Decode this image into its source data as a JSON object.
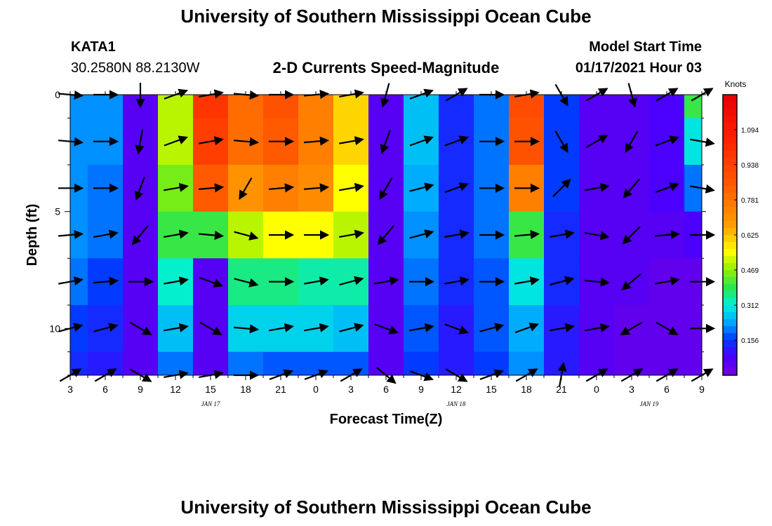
{
  "header": {
    "top_title": "University of Southern Mississippi Ocean Cube",
    "bottom_title": "University of Southern Mississippi Ocean Cube",
    "station": "KATA1",
    "coords": "30.2580N 88.2130W",
    "subtitle": "2-D Currents Speed-Magnitude",
    "model_start_label": "Model Start Time",
    "model_start_value": "01/17/2021 Hour 03"
  },
  "chart_data": {
    "type": "heatmap",
    "title": "2-D Currents Speed-Magnitude",
    "xlabel": "Forecast Time(Z)",
    "ylabel": "Depth (ft)",
    "x_ticks": [
      "3",
      "6",
      "9",
      "12",
      "15",
      "18",
      "21",
      "0",
      "3",
      "6",
      "9",
      "12",
      "15",
      "18",
      "21",
      "0",
      "3",
      "6",
      "9"
    ],
    "date_labels": [
      {
        "text": "JAN 17",
        "tick_index": 4
      },
      {
        "text": "JAN 18",
        "tick_index": 11
      },
      {
        "text": "JAN 19",
        "tick_index": 16.5
      }
    ],
    "y_ticks": [
      0,
      5,
      10
    ],
    "ylim": [
      0,
      12
    ],
    "colorbar": {
      "units": "Knots",
      "ticks": [
        "1.094",
        "0.938",
        "0.781",
        "0.625",
        "0.469",
        "0.312",
        "0.156"
      ],
      "range": [
        0,
        1.25
      ]
    },
    "time_hours": [
      0,
      3,
      6,
      9,
      12,
      15,
      18,
      21,
      24,
      27,
      30,
      33,
      36,
      39,
      42,
      45,
      48,
      51,
      54
    ],
    "depth_ft": [
      0,
      2,
      4,
      6,
      8,
      10,
      12
    ],
    "speed_knots": [
      [
        0.22,
        0.22,
        0.06,
        0.5,
        0.98,
        0.8,
        0.88,
        0.75,
        0.6,
        0.06,
        0.26,
        0.14,
        0.2,
        0.9,
        0.16,
        0.06,
        0.06,
        0.08,
        0.4
      ],
      [
        0.22,
        0.22,
        0.06,
        0.5,
        0.95,
        0.8,
        0.85,
        0.75,
        0.6,
        0.06,
        0.26,
        0.14,
        0.2,
        0.88,
        0.16,
        0.06,
        0.06,
        0.08,
        0.3
      ],
      [
        0.22,
        0.2,
        0.06,
        0.45,
        0.85,
        0.7,
        0.75,
        0.72,
        0.55,
        0.06,
        0.24,
        0.14,
        0.2,
        0.75,
        0.16,
        0.06,
        0.06,
        0.08,
        0.2
      ],
      [
        0.22,
        0.2,
        0.06,
        0.4,
        0.4,
        0.5,
        0.55,
        0.55,
        0.5,
        0.06,
        0.22,
        0.14,
        0.2,
        0.4,
        0.14,
        0.06,
        0.06,
        0.06,
        0.08
      ],
      [
        0.2,
        0.16,
        0.06,
        0.32,
        0.06,
        0.36,
        0.36,
        0.34,
        0.34,
        0.06,
        0.2,
        0.14,
        0.18,
        0.3,
        0.14,
        0.06,
        0.06,
        0.04,
        0.04
      ],
      [
        0.16,
        0.14,
        0.06,
        0.26,
        0.06,
        0.28,
        0.28,
        0.28,
        0.26,
        0.06,
        0.18,
        0.12,
        0.18,
        0.24,
        0.12,
        0.06,
        0.04,
        0.04,
        0.04
      ],
      [
        0.14,
        0.12,
        0.06,
        0.2,
        0.06,
        0.2,
        0.18,
        0.18,
        0.18,
        0.06,
        0.16,
        0.12,
        0.16,
        0.22,
        0.12,
        0.06,
        0.04,
        0.04,
        0.04
      ]
    ],
    "direction_deg": [
      [
        95,
        90,
        180,
        70,
        80,
        95,
        90,
        85,
        80,
        195,
        70,
        60,
        90,
        80,
        150,
        60,
        165,
        60,
        60
      ],
      [
        95,
        90,
        190,
        70,
        80,
        95,
        90,
        85,
        80,
        200,
        70,
        70,
        90,
        90,
        150,
        60,
        210,
        70,
        100
      ],
      [
        90,
        90,
        200,
        80,
        85,
        210,
        85,
        85,
        80,
        210,
        75,
        70,
        90,
        90,
        45,
        80,
        220,
        70,
        100
      ],
      [
        85,
        80,
        220,
        80,
        95,
        105,
        90,
        90,
        80,
        220,
        75,
        80,
        90,
        85,
        80,
        100,
        225,
        85,
        90
      ],
      [
        80,
        85,
        90,
        80,
        110,
        105,
        90,
        80,
        75,
        80,
        90,
        80,
        90,
        80,
        75,
        95,
        230,
        80,
        90
      ],
      [
        75,
        75,
        120,
        80,
        120,
        95,
        80,
        80,
        75,
        110,
        80,
        110,
        75,
        70,
        80,
        80,
        240,
        120,
        90
      ],
      [
        60,
        60,
        120,
        80,
        80,
        90,
        70,
        70,
        60,
        130,
        110,
        120,
        70,
        60,
        10,
        60,
        60,
        60,
        60
      ]
    ]
  }
}
